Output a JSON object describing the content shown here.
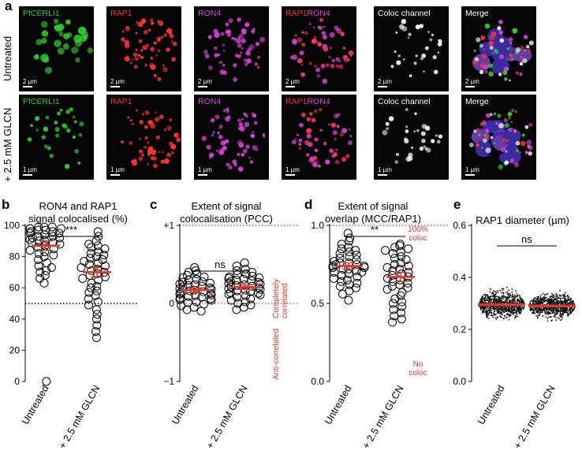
{
  "panel_letters": [
    "a",
    "b",
    "c",
    "d",
    "e"
  ],
  "panel_a": {
    "row_labels": [
      "Untreated",
      "+ 2.5 mM GLCN"
    ],
    "rows": [
      {
        "images": [
          {
            "label": "PfCERLI1",
            "color": "#33cc33",
            "scale_bar": "2 µm"
          },
          {
            "label": "RAP1",
            "color": "#ff3333",
            "scale_bar": "2 µm"
          },
          {
            "label": "RON4",
            "color": "#e040e0",
            "scale_bar": "2 µm"
          },
          {
            "label": "RAP1RON4",
            "color": "#ff3366",
            "scale_bar": "2 µm"
          },
          {
            "label": "Coloc channel",
            "color": "#ffffff",
            "scale_bar": "2 µm"
          },
          {
            "label": "Merge",
            "color": "#ffffff",
            "scale_bar": "2 µm"
          }
        ]
      },
      {
        "images": [
          {
            "label": "PfCERLI1",
            "color": "#33cc33",
            "scale_bar": "1 µm"
          },
          {
            "label": "RAP1",
            "color": "#ff3333",
            "scale_bar": "1 µm"
          },
          {
            "label": "RON4",
            "color": "#e040e0",
            "scale_bar": "1 µm"
          },
          {
            "label": "RAP1RON4",
            "color": "#ff3366",
            "scale_bar": "1 µm"
          },
          {
            "label": "Coloc channel",
            "color": "#ffffff",
            "scale_bar": "1 µm"
          },
          {
            "label": "Merge",
            "color": "#ffffff",
            "scale_bar": "1 µm"
          }
        ]
      }
    ]
  },
  "chart_data": [
    {
      "type": "scatter",
      "title": "RON4 and RAP1\nsignal colocalised (%)",
      "categories": [
        "Untreated",
        "+ 2.5 mM GLCN"
      ],
      "ylim": [
        0,
        100
      ],
      "yticks": [
        "0",
        "20",
        "40",
        "60",
        "80",
        "100"
      ],
      "mean": [
        87,
        70
      ],
      "sem": [
        3,
        3
      ],
      "significance": "***",
      "reference_lines": [
        {
          "y": 50,
          "style": "black-dotted"
        }
      ],
      "series": [
        {
          "values": [
            99,
            99,
            99,
            98,
            98,
            98,
            97,
            97,
            96,
            96,
            95,
            95,
            94,
            93,
            93,
            92,
            92,
            91,
            90,
            90,
            89,
            89,
            88,
            87,
            86,
            85,
            84,
            83,
            82,
            81,
            80,
            78,
            76,
            74,
            73,
            71,
            70,
            68,
            66,
            63,
            0
          ]
        },
        {
          "values": [
            96,
            93,
            90,
            88,
            87,
            86,
            85,
            83,
            82,
            81,
            80,
            79,
            78,
            77,
            76,
            75,
            74,
            73,
            72,
            71,
            70,
            69,
            68,
            67,
            66,
            65,
            63,
            61,
            60,
            58,
            57,
            55,
            53,
            51,
            49,
            46,
            43,
            40,
            36,
            32,
            28
          ]
        }
      ]
    },
    {
      "type": "scatter",
      "title": "Extent of signal\ncolocalisation (PCC)",
      "categories": [
        "Untreated",
        "+ 2.5 mM GLCN"
      ],
      "ylim": [
        -1,
        1
      ],
      "yticks": [
        "−1",
        "0",
        "+1"
      ],
      "mean": [
        0.17,
        0.21
      ],
      "sem": [
        0.03,
        0.03
      ],
      "significance": "ns",
      "reference_lines": [
        {
          "y": 1,
          "style": "red-dotted"
        },
        {
          "y": 0,
          "style": "red-dotted"
        }
      ],
      "annotations": [
        "Completely\ncorrelated",
        "Anti-correlated"
      ],
      "series": [
        {
          "values": [
            0.46,
            0.42,
            0.4,
            0.38,
            0.36,
            0.34,
            0.33,
            0.31,
            0.3,
            0.28,
            0.27,
            0.26,
            0.25,
            0.24,
            0.23,
            0.22,
            0.21,
            0.2,
            0.19,
            0.18,
            0.17,
            0.16,
            0.15,
            0.14,
            0.13,
            0.12,
            0.11,
            0.1,
            0.09,
            0.08,
            0.07,
            0.06,
            0.05,
            0.04,
            0.02,
            0.01,
            -0.01,
            -0.03,
            -0.05,
            -0.08,
            -0.1
          ]
        },
        {
          "values": [
            0.52,
            0.48,
            0.44,
            0.42,
            0.4,
            0.38,
            0.37,
            0.35,
            0.34,
            0.33,
            0.32,
            0.31,
            0.3,
            0.29,
            0.28,
            0.27,
            0.26,
            0.25,
            0.24,
            0.23,
            0.22,
            0.21,
            0.2,
            0.19,
            0.18,
            0.17,
            0.16,
            0.15,
            0.14,
            0.13,
            0.12,
            0.11,
            0.1,
            0.08,
            0.06,
            0.04,
            0.02,
            0.0,
            -0.02,
            -0.05,
            -0.08
          ]
        }
      ]
    },
    {
      "type": "scatter",
      "title": "Extent of signal\noverlap  (MCC/RAP1)",
      "categories": [
        "Untreated",
        "+ 2.5 mM GLCN"
      ],
      "ylim": [
        0,
        1
      ],
      "yticks": [
        "0.0",
        "0.5",
        "1.0"
      ],
      "mean": [
        0.74,
        0.67
      ],
      "sem": [
        0.02,
        0.03
      ],
      "significance": "**",
      "reference_lines": [
        {
          "y": 1,
          "style": "red-dotted"
        }
      ],
      "annotations": [
        "100%\ncoloc",
        "No\ncoloc"
      ],
      "series": [
        {
          "values": [
            0.95,
            0.92,
            0.9,
            0.88,
            0.86,
            0.85,
            0.84,
            0.83,
            0.82,
            0.81,
            0.8,
            0.79,
            0.78,
            0.77,
            0.76,
            0.76,
            0.75,
            0.75,
            0.74,
            0.74,
            0.73,
            0.73,
            0.72,
            0.72,
            0.71,
            0.7,
            0.7,
            0.69,
            0.68,
            0.67,
            0.66,
            0.65,
            0.64,
            0.63,
            0.62,
            0.61,
            0.6,
            0.58,
            0.56,
            0.52
          ]
        },
        {
          "values": [
            0.88,
            0.87,
            0.86,
            0.85,
            0.84,
            0.83,
            0.82,
            0.8,
            0.79,
            0.78,
            0.76,
            0.75,
            0.74,
            0.73,
            0.72,
            0.71,
            0.7,
            0.69,
            0.68,
            0.67,
            0.66,
            0.65,
            0.64,
            0.63,
            0.62,
            0.61,
            0.6,
            0.59,
            0.57,
            0.55,
            0.53,
            0.51,
            0.5,
            0.48,
            0.46,
            0.44,
            0.42,
            0.4,
            0.38
          ]
        }
      ]
    },
    {
      "type": "scatter",
      "title": "RAP1 diameter (µm)",
      "categories": [
        "Untreated",
        "+ 2.5 mM GLCN"
      ],
      "ylim": [
        0,
        0.6
      ],
      "yticks": [
        "0.0",
        "0.2",
        "0.4",
        "0.6"
      ],
      "mean": [
        0.295,
        0.29
      ],
      "significance": "ns",
      "distribution": [
        {
          "center": 0.295,
          "spread": 0.045,
          "min": 0.2,
          "max": 0.55
        },
        {
          "center": 0.29,
          "spread": 0.04,
          "min": 0.2,
          "max": 0.47
        }
      ]
    }
  ]
}
